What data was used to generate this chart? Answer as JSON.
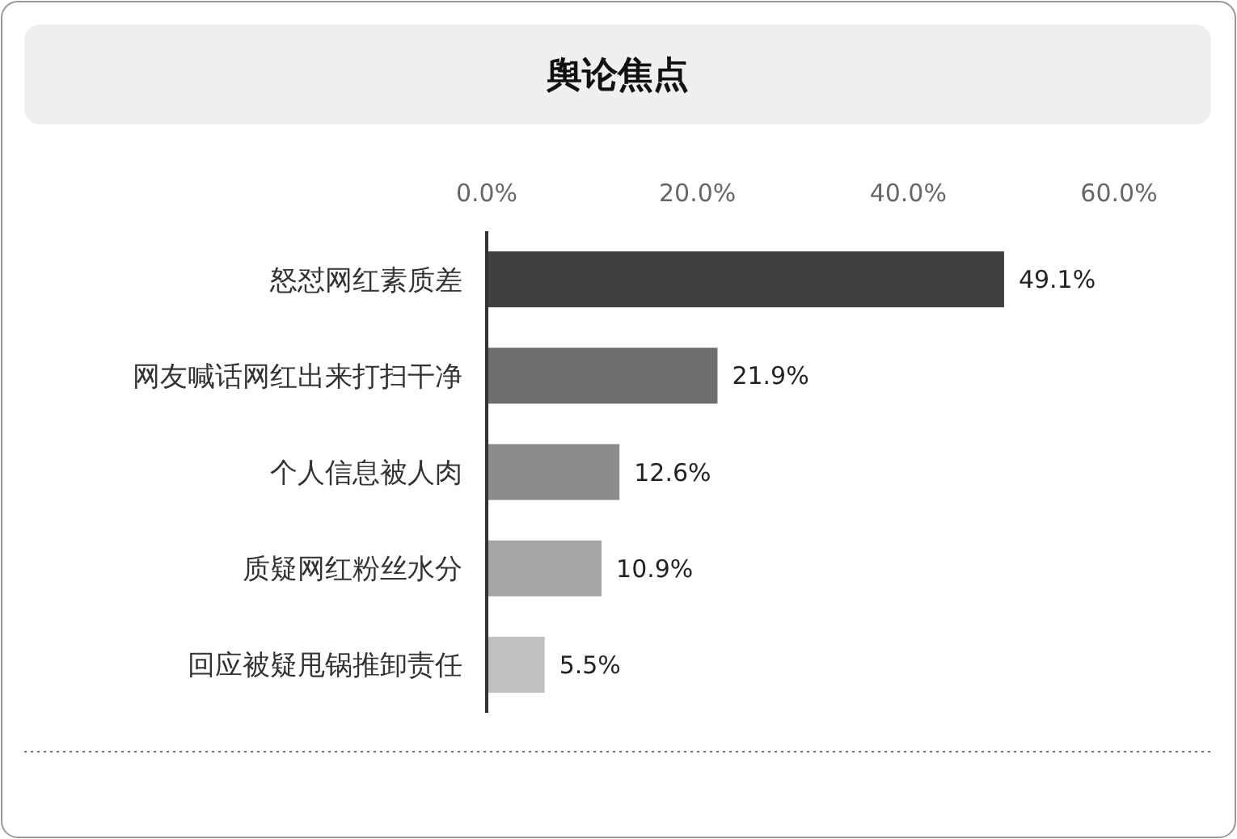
{
  "chart_data": {
    "type": "bar",
    "orientation": "horizontal",
    "title": "舆论焦点",
    "categories": [
      "怒怼网红素质差",
      "网友喊话网红出来打扫干净",
      "个人信息被人肉",
      "质疑网红粉丝水分",
      "回应被疑甩锅推卸责任"
    ],
    "values": [
      49.1,
      21.9,
      12.6,
      10.9,
      5.5
    ],
    "colors": [
      "#404040",
      "#6e6e6e",
      "#8c8c8c",
      "#a6a6a6",
      "#c0c0c0"
    ],
    "value_labels": [
      "49.1%",
      "21.9%",
      "12.6%",
      "10.9%",
      "5.5%"
    ],
    "xlim": [
      0,
      60
    ],
    "xticks": [
      {
        "value": 0,
        "label": "0.0%"
      },
      {
        "value": 20,
        "label": "20.0%"
      },
      {
        "value": 40,
        "label": "40.0%"
      },
      {
        "value": 60,
        "label": "60.0%"
      }
    ],
    "grid": false
  }
}
